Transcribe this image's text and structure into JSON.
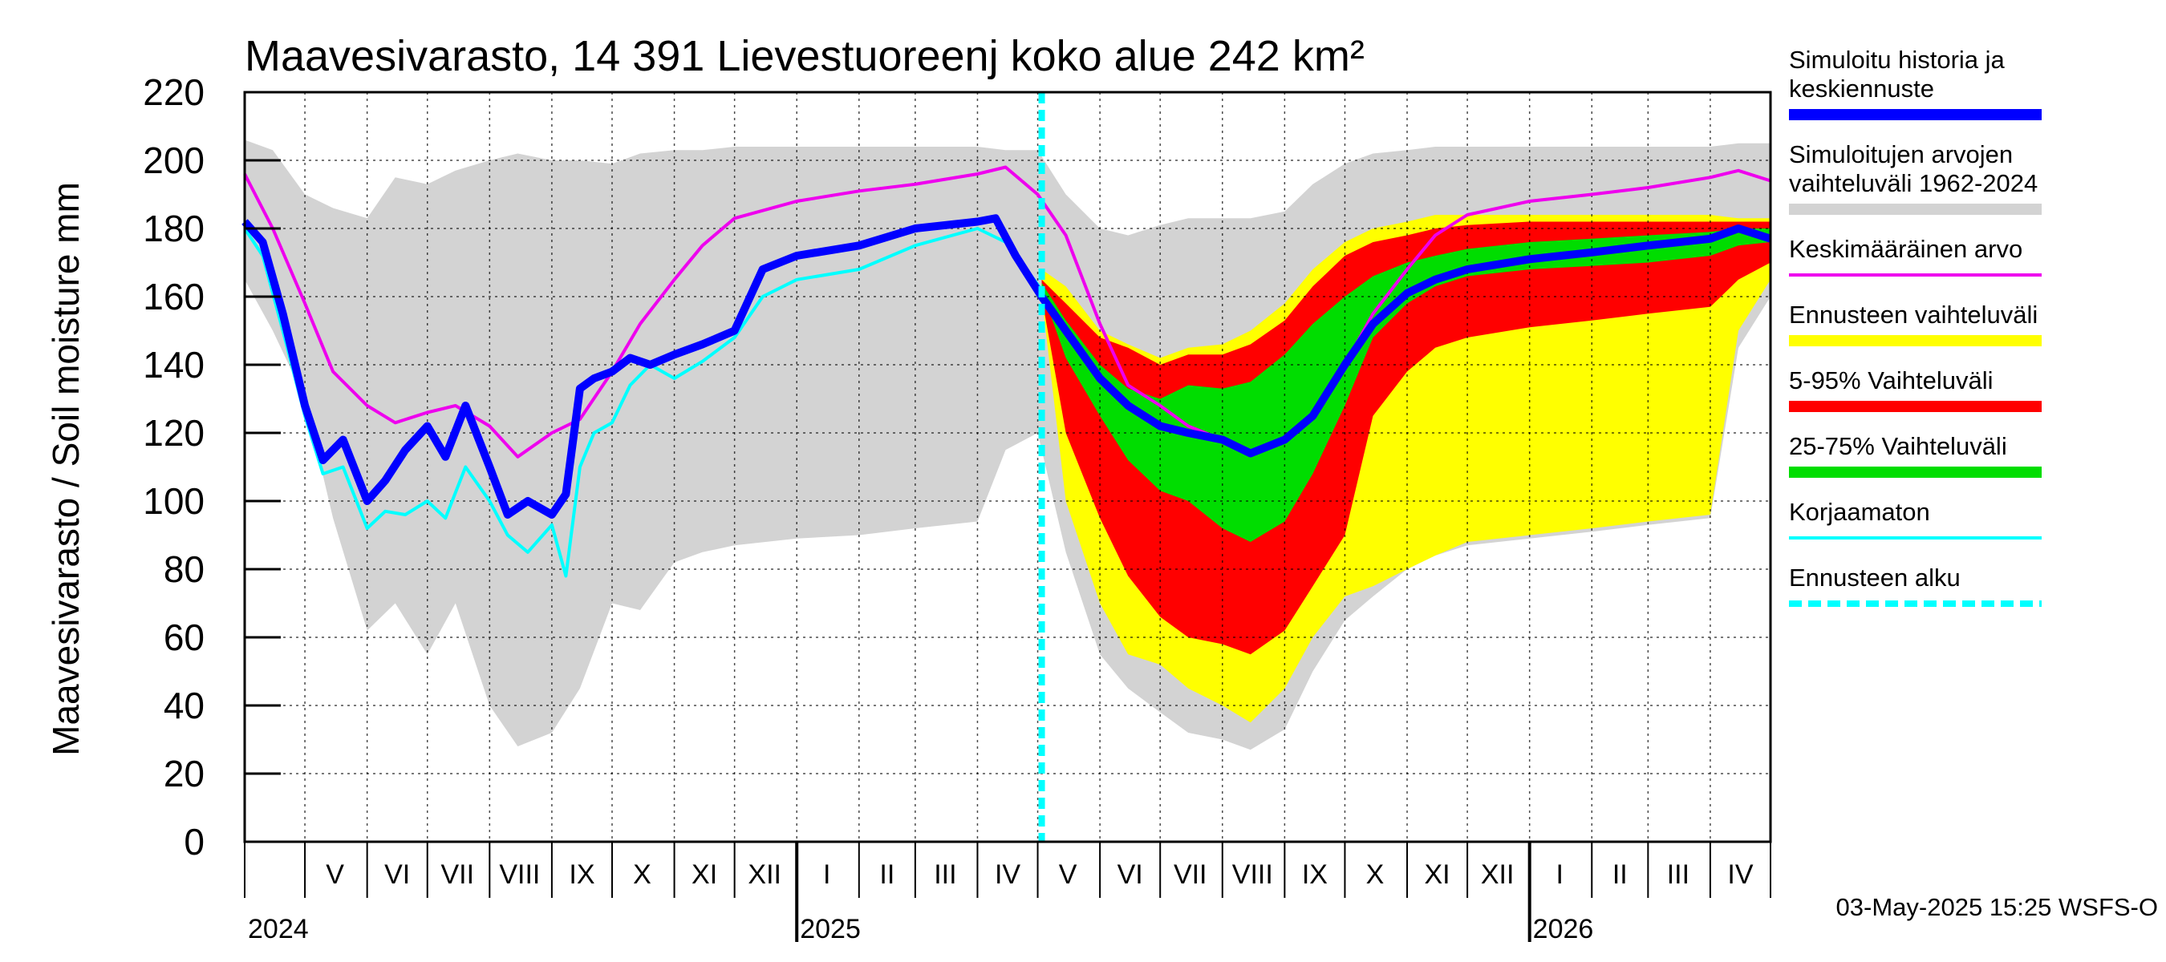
{
  "chart_data": {
    "type": "area",
    "title": "Maavesivarasto, 14 391 Lievestuoreenj koko alue 242 km²",
    "ylabel": "Maavesivarasto / Soil moisture   mm",
    "ylim": [
      0,
      220
    ],
    "yticks": [
      0,
      20,
      40,
      60,
      80,
      100,
      120,
      140,
      160,
      180,
      200,
      220
    ],
    "xlim": [
      "2024-04-01",
      "2026-05-01"
    ],
    "grid": true,
    "legend_position": "right",
    "forecast_start": "2025-05-03",
    "month_labels": [
      {
        "label": "V",
        "date": "2024-05-16"
      },
      {
        "label": "VI",
        "date": "2024-06-16"
      },
      {
        "label": "VII",
        "date": "2024-07-16"
      },
      {
        "label": "VIII",
        "date": "2024-08-16"
      },
      {
        "label": "IX",
        "date": "2024-09-16"
      },
      {
        "label": "X",
        "date": "2024-10-16"
      },
      {
        "label": "XI",
        "date": "2024-11-16"
      },
      {
        "label": "XII",
        "date": "2024-12-16"
      },
      {
        "label": "I",
        "date": "2025-01-16"
      },
      {
        "label": "II",
        "date": "2025-02-15"
      },
      {
        "label": "III",
        "date": "2025-03-16"
      },
      {
        "label": "IV",
        "date": "2025-04-16"
      },
      {
        "label": "V",
        "date": "2025-05-16"
      },
      {
        "label": "VI",
        "date": "2025-06-16"
      },
      {
        "label": "VII",
        "date": "2025-07-16"
      },
      {
        "label": "VIII",
        "date": "2025-08-16"
      },
      {
        "label": "IX",
        "date": "2025-09-16"
      },
      {
        "label": "X",
        "date": "2025-10-16"
      },
      {
        "label": "XI",
        "date": "2025-11-16"
      },
      {
        "label": "XII",
        "date": "2025-12-16"
      },
      {
        "label": "I",
        "date": "2026-01-16"
      },
      {
        "label": "II",
        "date": "2026-02-15"
      },
      {
        "label": "III",
        "date": "2026-03-16"
      },
      {
        "label": "IV",
        "date": "2026-04-16"
      }
    ],
    "year_labels": [
      {
        "label": "2024",
        "date": "2024-04-01"
      },
      {
        "label": "2025",
        "date": "2025-01-01"
      },
      {
        "label": "2026",
        "date": "2026-01-01"
      }
    ],
    "series": [
      {
        "name": "Simuloitujen arvojen vaihteluväli 1962-2024",
        "color": "#d3d3d3",
        "kind": "band",
        "x": [
          "2024-04-01",
          "2024-04-15",
          "2024-05-01",
          "2024-05-15",
          "2024-06-01",
          "2024-06-15",
          "2024-07-01",
          "2024-07-15",
          "2024-08-01",
          "2024-08-15",
          "2024-09-01",
          "2024-09-15",
          "2024-10-01",
          "2024-10-15",
          "2024-11-01",
          "2024-11-15",
          "2024-12-01",
          "2025-01-01",
          "2025-02-01",
          "2025-03-01",
          "2025-04-01",
          "2025-04-15",
          "2025-05-01",
          "2025-05-15",
          "2025-06-01",
          "2025-06-15",
          "2025-07-01",
          "2025-07-15",
          "2025-08-01",
          "2025-08-15",
          "2025-09-01",
          "2025-09-15",
          "2025-10-01",
          "2025-10-15",
          "2025-11-01",
          "2025-11-15",
          "2025-12-01",
          "2026-01-01",
          "2026-02-01",
          "2026-03-01",
          "2026-04-01",
          "2026-04-15",
          "2026-05-01"
        ],
        "lower": [
          165,
          150,
          130,
          95,
          62,
          70,
          55,
          70,
          40,
          28,
          32,
          45,
          70,
          68,
          82,
          85,
          87,
          89,
          90,
          92,
          94,
          115,
          120,
          85,
          55,
          45,
          38,
          32,
          30,
          27,
          33,
          50,
          65,
          72,
          80,
          84,
          87,
          89,
          91,
          93,
          95,
          145,
          160
        ],
        "upper": [
          206,
          203,
          190,
          186,
          183,
          195,
          193,
          197,
          200,
          202,
          200,
          200,
          199,
          202,
          203,
          203,
          204,
          204,
          204,
          204,
          204,
          203,
          203,
          190,
          180,
          178,
          181,
          183,
          183,
          183,
          185,
          193,
          199,
          202,
          203,
          204,
          204,
          204,
          204,
          204,
          204,
          205,
          205
        ]
      },
      {
        "name": "Ennusteen vaihteluväli",
        "color": "#ffff00",
        "kind": "band",
        "x": [
          "2025-05-03",
          "2025-05-15",
          "2025-06-01",
          "2025-06-15",
          "2025-07-01",
          "2025-07-15",
          "2025-08-01",
          "2025-08-15",
          "2025-09-01",
          "2025-09-15",
          "2025-10-01",
          "2025-10-15",
          "2025-11-01",
          "2025-11-15",
          "2025-12-01",
          "2026-01-01",
          "2026-02-01",
          "2026-03-01",
          "2026-04-01",
          "2026-04-15",
          "2026-05-01"
        ],
        "lower": [
          160,
          100,
          70,
          55,
          52,
          45,
          40,
          35,
          45,
          60,
          72,
          75,
          80,
          84,
          88,
          90,
          92,
          94,
          96,
          150,
          165
        ],
        "upper": [
          168,
          163,
          150,
          146,
          142,
          145,
          146,
          150,
          158,
          168,
          176,
          180,
          182,
          184,
          184,
          184,
          184,
          184,
          184,
          183,
          183
        ]
      },
      {
        "name": "5-95% Vaihteluväli",
        "color": "#ff0000",
        "kind": "band",
        "x": [
          "2025-05-03",
          "2025-05-15",
          "2025-06-01",
          "2025-06-15",
          "2025-07-01",
          "2025-07-15",
          "2025-08-01",
          "2025-08-15",
          "2025-09-01",
          "2025-09-15",
          "2025-10-01",
          "2025-10-15",
          "2025-11-01",
          "2025-11-15",
          "2025-12-01",
          "2026-01-01",
          "2026-02-01",
          "2026-03-01",
          "2026-04-01",
          "2026-04-15",
          "2026-05-01"
        ],
        "lower": [
          160,
          120,
          95,
          78,
          66,
          60,
          58,
          55,
          62,
          75,
          90,
          125,
          138,
          145,
          148,
          151,
          153,
          155,
          157,
          165,
          170
        ],
        "upper": [
          165,
          158,
          148,
          145,
          140,
          143,
          143,
          146,
          153,
          163,
          172,
          176,
          178,
          180,
          181,
          182,
          182,
          182,
          182,
          182,
          182
        ]
      },
      {
        "name": "25-75% Vaihteluväli",
        "color": "#00dd00",
        "kind": "band",
        "x": [
          "2025-05-03",
          "2025-05-15",
          "2025-06-01",
          "2025-06-15",
          "2025-07-01",
          "2025-07-15",
          "2025-08-01",
          "2025-08-15",
          "2025-09-01",
          "2025-09-15",
          "2025-10-01",
          "2025-10-15",
          "2025-11-01",
          "2025-11-15",
          "2025-12-01",
          "2026-01-01",
          "2026-02-01",
          "2026-03-01",
          "2026-04-01",
          "2026-04-15",
          "2026-05-01"
        ],
        "lower": [
          162,
          142,
          125,
          112,
          103,
          100,
          92,
          88,
          94,
          108,
          128,
          148,
          158,
          163,
          166,
          168,
          169,
          170,
          172,
          175,
          176
        ],
        "upper": [
          164,
          153,
          140,
          133,
          130,
          134,
          133,
          135,
          143,
          152,
          160,
          166,
          170,
          172,
          174,
          176,
          177,
          178,
          179,
          180,
          180
        ]
      },
      {
        "name": "Keskimääräinen arvo",
        "color": "#ee00ee",
        "kind": "line",
        "x": [
          "2024-04-01",
          "2024-04-15",
          "2024-05-01",
          "2024-05-15",
          "2024-06-01",
          "2024-06-15",
          "2024-07-01",
          "2024-07-15",
          "2024-08-01",
          "2024-08-15",
          "2024-09-01",
          "2024-09-15",
          "2024-10-01",
          "2024-10-15",
          "2024-11-01",
          "2024-11-15",
          "2024-12-01",
          "2025-01-01",
          "2025-02-01",
          "2025-03-01",
          "2025-04-01",
          "2025-04-15",
          "2025-05-01",
          "2025-05-15",
          "2025-06-01",
          "2025-06-15",
          "2025-07-01",
          "2025-07-15",
          "2025-08-01",
          "2025-08-15",
          "2025-09-01",
          "2025-09-15",
          "2025-10-01",
          "2025-10-15",
          "2025-11-01",
          "2025-11-15",
          "2025-12-01",
          "2026-01-01",
          "2026-02-01",
          "2026-03-01",
          "2026-04-01",
          "2026-04-15",
          "2026-05-01"
        ],
        "y": [
          196,
          180,
          158,
          138,
          128,
          123,
          126,
          128,
          122,
          113,
          120,
          124,
          138,
          152,
          165,
          175,
          183,
          188,
          191,
          193,
          196,
          198,
          190,
          178,
          152,
          134,
          128,
          122,
          118,
          114,
          118,
          125,
          140,
          155,
          168,
          178,
          184,
          188,
          190,
          192,
          195,
          197,
          194
        ]
      },
      {
        "name": "Korjaamaton",
        "color": "#00ffff",
        "kind": "line",
        "x": [
          "2024-04-01",
          "2024-04-10",
          "2024-04-20",
          "2024-05-01",
          "2024-05-10",
          "2024-05-20",
          "2024-06-01",
          "2024-06-10",
          "2024-06-20",
          "2024-07-01",
          "2024-07-10",
          "2024-07-20",
          "2024-08-01",
          "2024-08-10",
          "2024-08-20",
          "2024-09-01",
          "2024-09-08",
          "2024-09-15",
          "2024-09-22",
          "2024-10-01",
          "2024-10-10",
          "2024-10-20",
          "2024-11-01",
          "2024-11-15",
          "2024-12-01",
          "2024-12-15",
          "2025-01-01",
          "2025-02-01",
          "2025-03-01",
          "2025-04-01",
          "2025-04-15",
          "2025-05-03"
        ],
        "y": [
          180,
          172,
          150,
          125,
          108,
          110,
          92,
          97,
          96,
          100,
          95,
          110,
          100,
          90,
          85,
          93,
          78,
          110,
          120,
          123,
          134,
          140,
          136,
          141,
          148,
          160,
          165,
          168,
          175,
          180,
          176,
          162
        ]
      },
      {
        "name": "Simuloitu historia ja keskiennuste",
        "color": "#0000ff",
        "kind": "line",
        "x": [
          "2024-04-01",
          "2024-04-10",
          "2024-04-20",
          "2024-05-01",
          "2024-05-10",
          "2024-05-20",
          "2024-06-01",
          "2024-06-10",
          "2024-06-20",
          "2024-07-01",
          "2024-07-10",
          "2024-07-20",
          "2024-08-01",
          "2024-08-10",
          "2024-08-20",
          "2024-09-01",
          "2024-09-08",
          "2024-09-15",
          "2024-09-22",
          "2024-10-01",
          "2024-10-10",
          "2024-10-20",
          "2024-11-01",
          "2024-11-15",
          "2024-12-01",
          "2024-12-15",
          "2025-01-01",
          "2025-02-01",
          "2025-03-01",
          "2025-04-01",
          "2025-04-10",
          "2025-04-20",
          "2025-05-03",
          "2025-05-15",
          "2025-06-01",
          "2025-06-15",
          "2025-07-01",
          "2025-07-15",
          "2025-08-01",
          "2025-08-15",
          "2025-09-01",
          "2025-09-15",
          "2025-10-01",
          "2025-10-15",
          "2025-11-01",
          "2025-11-15",
          "2025-12-01",
          "2026-01-01",
          "2026-02-01",
          "2026-03-01",
          "2026-04-01",
          "2026-04-15",
          "2026-05-01"
        ],
        "y": [
          182,
          176,
          155,
          128,
          112,
          118,
          100,
          106,
          115,
          122,
          113,
          128,
          110,
          96,
          100,
          96,
          102,
          133,
          136,
          138,
          142,
          140,
          143,
          146,
          150,
          168,
          172,
          175,
          180,
          182,
          183,
          172,
          160,
          150,
          136,
          128,
          122,
          120,
          118,
          114,
          118,
          125,
          140,
          152,
          161,
          165,
          168,
          171,
          173,
          175,
          177,
          180,
          177
        ]
      }
    ]
  },
  "legend": [
    {
      "lines": [
        "Simuloitu historia ja",
        "keskiennuste"
      ],
      "color": "#0000ff",
      "style": "thick"
    },
    {
      "lines": [
        "Simuloitujen arvojen",
        "vaihteluväli 1962-2024"
      ],
      "color": "#d3d3d3",
      "style": "thick"
    },
    {
      "lines": [
        "Keskimääräinen arvo"
      ],
      "color": "#ee00ee",
      "style": "thin"
    },
    {
      "lines": [
        "Ennusteen vaihteluväli"
      ],
      "color": "#ffff00",
      "style": "thick"
    },
    {
      "lines": [
        "5-95% Vaihteluväli"
      ],
      "color": "#ff0000",
      "style": "thick"
    },
    {
      "lines": [
        "25-75% Vaihteluväli"
      ],
      "color": "#00dd00",
      "style": "thick"
    },
    {
      "lines": [
        "Korjaamaton"
      ],
      "color": "#00ffff",
      "style": "thin"
    },
    {
      "lines": [
        "Ennusteen alku"
      ],
      "color": "#00ffff",
      "style": "dashed"
    }
  ],
  "footer": "03-May-2025 15:25 WSFS-O"
}
